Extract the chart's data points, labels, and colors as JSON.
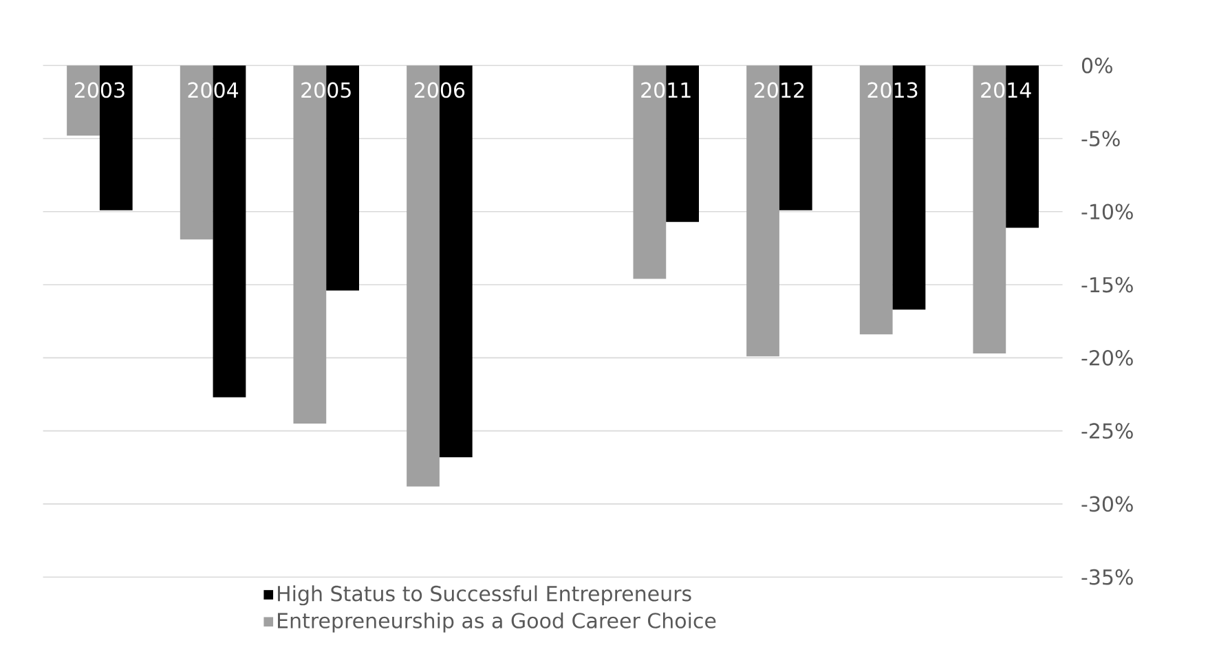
{
  "chart_data": {
    "type": "bar",
    "categories": [
      "2003",
      "2004",
      "2005",
      "2006",
      null,
      "2011",
      "2012",
      "2013",
      "2014"
    ],
    "series": [
      {
        "name": "Entrepreneurship as a Good Career Choice",
        "color": "#a0a0a0",
        "values": [
          -4.8,
          -11.9,
          -24.5,
          -28.8,
          null,
          -14.6,
          -19.9,
          -18.4,
          -19.7
        ]
      },
      {
        "name": "High Status to Successful Entrepreneurs",
        "color": "#000000",
        "values": [
          -9.9,
          -22.7,
          -15.4,
          -26.8,
          null,
          -10.7,
          -9.9,
          -16.7,
          -11.1
        ]
      }
    ],
    "ylim": [
      -35,
      0
    ],
    "yticks": [
      {
        "value": 0,
        "label": "0%"
      },
      {
        "value": -5,
        "label": "-5%"
      },
      {
        "value": -10,
        "label": "-10%"
      },
      {
        "value": -15,
        "label": "-15%"
      },
      {
        "value": -20,
        "label": "-20%"
      },
      {
        "value": -25,
        "label": "-25%"
      },
      {
        "value": -30,
        "label": "-30%"
      },
      {
        "value": -35,
        "label": "-35%"
      }
    ],
    "grid": "y",
    "legend": "bottom"
  }
}
